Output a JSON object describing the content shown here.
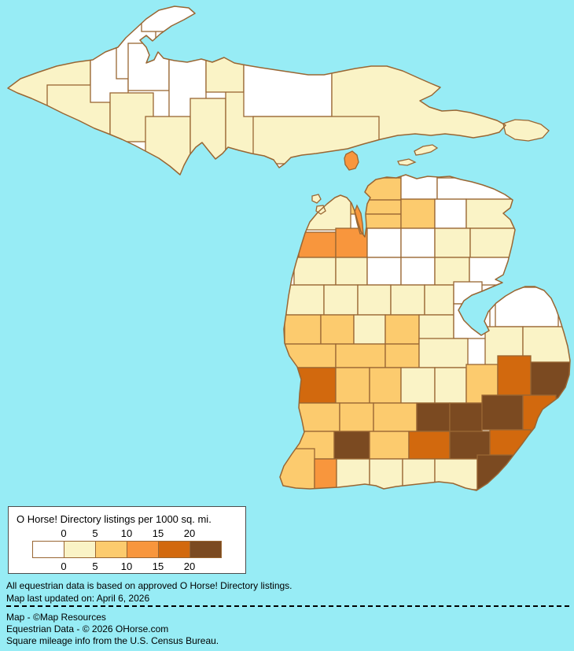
{
  "colors": {
    "background": "#97ECF5",
    "county_border": "#996633",
    "legend_border": "#4D4D4D",
    "classes": [
      "#FFFFFF",
      "#FAF3C6",
      "#FCCB6E",
      "#F8963D",
      "#D2690E",
      "#7B4A21"
    ]
  },
  "legend": {
    "title": "O Horse! Directory listings per 1000 sq. mi.",
    "ticks": [
      "0",
      "5",
      "10",
      "15",
      "20"
    ]
  },
  "notes": {
    "line1": "All equestrian data is based on approved O Horse! Directory listings.",
    "line2": "Map last updated on: April 6, 2026"
  },
  "credits": {
    "line1": "Map - ©Map Resources",
    "line2": "Equestrian Data - © 2026 OHorse.com",
    "line3": "Square mileage info from the U.S. Census Bureau."
  },
  "map": {
    "regions": [
      {
        "id": "gogebic",
        "class": 1
      },
      {
        "id": "iron",
        "class": 1
      },
      {
        "id": "ontonagon",
        "class": 0
      },
      {
        "id": "houghton",
        "class": 0
      },
      {
        "id": "keweenaw",
        "class": 0
      },
      {
        "id": "baraga",
        "class": 0
      },
      {
        "id": "marquette",
        "class": 0
      },
      {
        "id": "dickinson",
        "class": 1
      },
      {
        "id": "menominee",
        "class": 1
      },
      {
        "id": "delta",
        "class": 1
      },
      {
        "id": "schoolcraft",
        "class": 1
      },
      {
        "id": "alger",
        "class": 1
      },
      {
        "id": "luce",
        "class": 0
      },
      {
        "id": "chippewa",
        "class": 1
      },
      {
        "id": "mackinac",
        "class": 1
      },
      {
        "id": "emmet",
        "class": 2
      },
      {
        "id": "cheboygan",
        "class": 0
      },
      {
        "id": "presque_isle",
        "class": 0
      },
      {
        "id": "charlevoix",
        "class": 2
      },
      {
        "id": "antrim",
        "class": 2
      },
      {
        "id": "otsego",
        "class": 2
      },
      {
        "id": "montmorency",
        "class": 0
      },
      {
        "id": "alpena",
        "class": 1
      },
      {
        "id": "leelanau",
        "class": 1
      },
      {
        "id": "benzie",
        "class": 3
      },
      {
        "id": "grand_traverse",
        "class": 3
      },
      {
        "id": "kalkaska",
        "class": 0
      },
      {
        "id": "crawford",
        "class": 0
      },
      {
        "id": "oscoda",
        "class": 1
      },
      {
        "id": "alcona",
        "class": 1
      },
      {
        "id": "manistee",
        "class": 1
      },
      {
        "id": "wexford",
        "class": 1
      },
      {
        "id": "missaukee",
        "class": 0
      },
      {
        "id": "roscommon",
        "class": 0
      },
      {
        "id": "ogemaw",
        "class": 1
      },
      {
        "id": "iosco",
        "class": 0
      },
      {
        "id": "mason",
        "class": 1
      },
      {
        "id": "lake",
        "class": 1
      },
      {
        "id": "osceola",
        "class": 1
      },
      {
        "id": "clare",
        "class": 1
      },
      {
        "id": "gladwin",
        "class": 1
      },
      {
        "id": "arenac",
        "class": 0
      },
      {
        "id": "oceana",
        "class": 2
      },
      {
        "id": "newaygo",
        "class": 2
      },
      {
        "id": "mecosta",
        "class": 1
      },
      {
        "id": "isabella",
        "class": 2
      },
      {
        "id": "midland",
        "class": 1
      },
      {
        "id": "bay",
        "class": 0
      },
      {
        "id": "muskegon",
        "class": 2
      },
      {
        "id": "montcalm",
        "class": 2
      },
      {
        "id": "gratiot",
        "class": 2
      },
      {
        "id": "saginaw",
        "class": 1
      },
      {
        "id": "huron",
        "class": 0
      },
      {
        "id": "tuscola",
        "class": 1
      },
      {
        "id": "sanilac",
        "class": 1
      },
      {
        "id": "ottawa",
        "class": 4
      },
      {
        "id": "kent",
        "class": 2
      },
      {
        "id": "ionia",
        "class": 2
      },
      {
        "id": "clinton",
        "class": 1
      },
      {
        "id": "shiawassee",
        "class": 1
      },
      {
        "id": "genesee",
        "class": 2
      },
      {
        "id": "lapeer",
        "class": 4
      },
      {
        "id": "st_clair",
        "class": 5
      },
      {
        "id": "allegan",
        "class": 2
      },
      {
        "id": "barry",
        "class": 2
      },
      {
        "id": "eaton",
        "class": 2
      },
      {
        "id": "ingham",
        "class": 5
      },
      {
        "id": "livingston",
        "class": 5
      },
      {
        "id": "oakland",
        "class": 5
      },
      {
        "id": "macomb",
        "class": 4
      },
      {
        "id": "van_buren",
        "class": 2
      },
      {
        "id": "kalamazoo",
        "class": 5
      },
      {
        "id": "calhoun",
        "class": 2
      },
      {
        "id": "jackson",
        "class": 4
      },
      {
        "id": "washtenaw",
        "class": 5
      },
      {
        "id": "wayne",
        "class": 4
      },
      {
        "id": "berrien",
        "class": 2
      },
      {
        "id": "cass",
        "class": 3
      },
      {
        "id": "st_joseph",
        "class": 1
      },
      {
        "id": "branch",
        "class": 1
      },
      {
        "id": "hillsdale",
        "class": 1
      },
      {
        "id": "lenawee",
        "class": 1
      },
      {
        "id": "monroe",
        "class": 5
      },
      {
        "id": "old_mission",
        "class": 3
      },
      {
        "id": "beaver_island",
        "class": 3
      },
      {
        "id": "north_manitou",
        "class": 1
      },
      {
        "id": "south_manitou",
        "class": 1
      },
      {
        "id": "les_cheneaux",
        "class": 1
      },
      {
        "id": "bois_blanc",
        "class": 1
      },
      {
        "id": "drummond",
        "class": 1
      }
    ]
  }
}
